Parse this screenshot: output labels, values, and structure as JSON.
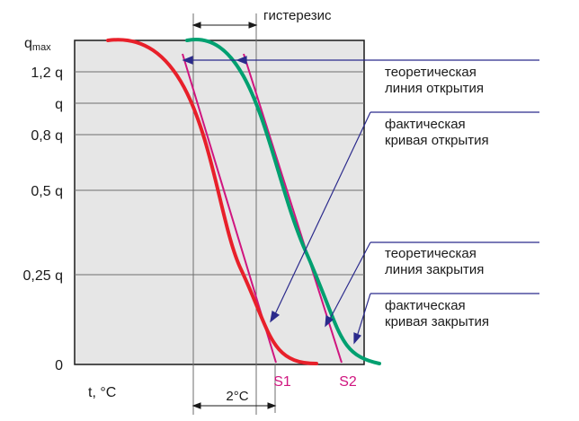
{
  "y_labels": {
    "qmax_main": "q",
    "qmax_sub": "max",
    "l12": "1,2 q",
    "l10": "q",
    "l08": "0,8 q",
    "l05": "0,5 q",
    "l025": "0,25 q",
    "l0": "0"
  },
  "x_axis_label": "t, °C",
  "hysteresis_label": "гистерезис",
  "delta_label": "2°C",
  "s1": "S1",
  "s2": "S2",
  "annotations": {
    "theor_open_1": "теоретическая",
    "theor_open_2": "линия открытия",
    "fact_open_1": "фактическая",
    "fact_open_2": "кривая открытия",
    "theor_close_1": "теоретическая",
    "theor_close_2": "линия закрытия",
    "fact_close_1": "фактическая",
    "fact_close_2": "кривая закрытия"
  },
  "colors": {
    "closing_curve": "#e8202a",
    "opening_curve": "#00a070",
    "theoretical_lines": "#d0157f",
    "pointers": "#2b2a8c",
    "plot_background": "#e6e6e6",
    "grid": "#6e6e6e"
  }
}
